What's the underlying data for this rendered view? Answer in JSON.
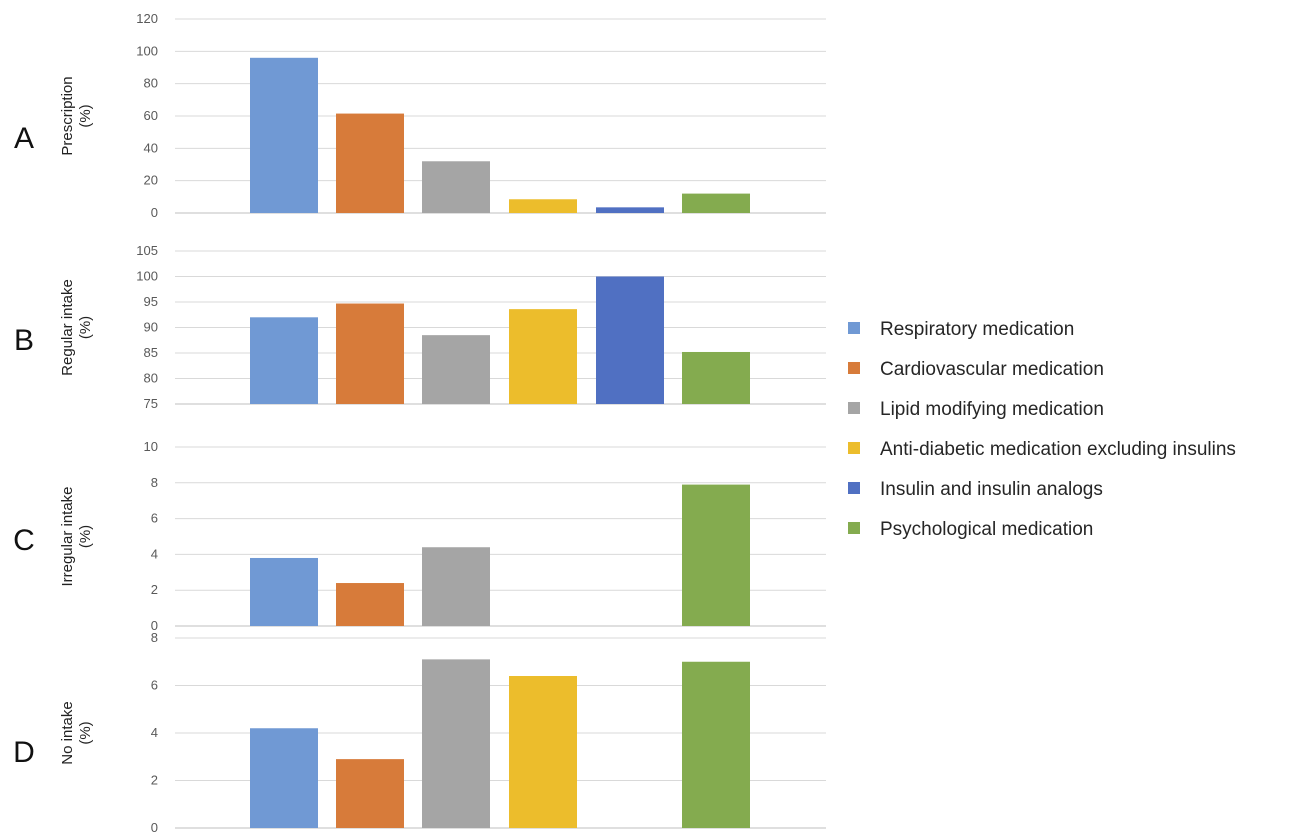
{
  "chart_data": [
    {
      "type": "bar",
      "panel_label": "A",
      "ylabel": [
        "Prescription",
        "(%)"
      ],
      "ylim": [
        0,
        120
      ],
      "yticks": [
        0,
        20,
        40,
        60,
        80,
        100,
        120
      ],
      "grid": true,
      "series": [
        {
          "name": "Respiratory medication",
          "value": 96
        },
        {
          "name": "Cardiovascular medication",
          "value": 61.5
        },
        {
          "name": "Lipid modifying medication",
          "value": 32
        },
        {
          "name": "Anti-diabetic medication excluding insulins",
          "value": 8.5
        },
        {
          "name": "Insulin and insulin analogs",
          "value": 3.5
        },
        {
          "name": "Psychological medication",
          "value": 12
        }
      ]
    },
    {
      "type": "bar",
      "panel_label": "B",
      "ylabel": [
        "Regular intake",
        "(%)"
      ],
      "ylim": [
        75,
        105
      ],
      "yticks": [
        75,
        80,
        85,
        90,
        95,
        100,
        105
      ],
      "grid": true,
      "series": [
        {
          "name": "Respiratory medication",
          "value": 92
        },
        {
          "name": "Cardiovascular medication",
          "value": 94.7
        },
        {
          "name": "Lipid modifying medication",
          "value": 88.5
        },
        {
          "name": "Anti-diabetic medication excluding insulins",
          "value": 93.6
        },
        {
          "name": "Insulin and insulin analogs",
          "value": 100
        },
        {
          "name": "Psychological medication",
          "value": 85.2
        }
      ]
    },
    {
      "type": "bar",
      "panel_label": "C",
      "ylabel": [
        "Irregular intake",
        "(%)"
      ],
      "ylim": [
        0,
        10
      ],
      "yticks": [
        0,
        2,
        4,
        6,
        8,
        10
      ],
      "grid": true,
      "series": [
        {
          "name": "Respiratory medication",
          "value": 3.8
        },
        {
          "name": "Cardiovascular medication",
          "value": 2.4
        },
        {
          "name": "Lipid modifying medication",
          "value": 4.4
        },
        {
          "name": "Anti-diabetic medication excluding insulins",
          "value": 0
        },
        {
          "name": "Insulin and insulin analogs",
          "value": 0
        },
        {
          "name": "Psychological medication",
          "value": 7.9
        }
      ]
    },
    {
      "type": "bar",
      "panel_label": "D",
      "ylabel": [
        "No intake",
        "(%)"
      ],
      "ylim": [
        0,
        8
      ],
      "yticks": [
        0,
        2,
        4,
        6,
        8
      ],
      "grid": true,
      "series": [
        {
          "name": "Respiratory medication",
          "value": 4.2
        },
        {
          "name": "Cardiovascular medication",
          "value": 2.9
        },
        {
          "name": "Lipid modifying medication",
          "value": 7.1
        },
        {
          "name": "Anti-diabetic medication excluding insulins",
          "value": 6.4
        },
        {
          "name": "Insulin and insulin analogs",
          "value": 0
        },
        {
          "name": "Psychological medication",
          "value": 7.0
        }
      ]
    }
  ],
  "legend": {
    "placement": "right",
    "items": [
      {
        "label": "Respiratory medication",
        "color": "#7099d4"
      },
      {
        "label": "Cardiovascular medication",
        "color": "#d77b3a"
      },
      {
        "label": "Lipid modifying medication",
        "color": "#a5a5a5"
      },
      {
        "label": "Anti-diabetic medication excluding insulins",
        "color": "#ecbd2c"
      },
      {
        "label": "Insulin and insulin analogs",
        "color": "#5070c2"
      },
      {
        "label": "Psychological medication",
        "color": "#84ab4f"
      }
    ]
  }
}
